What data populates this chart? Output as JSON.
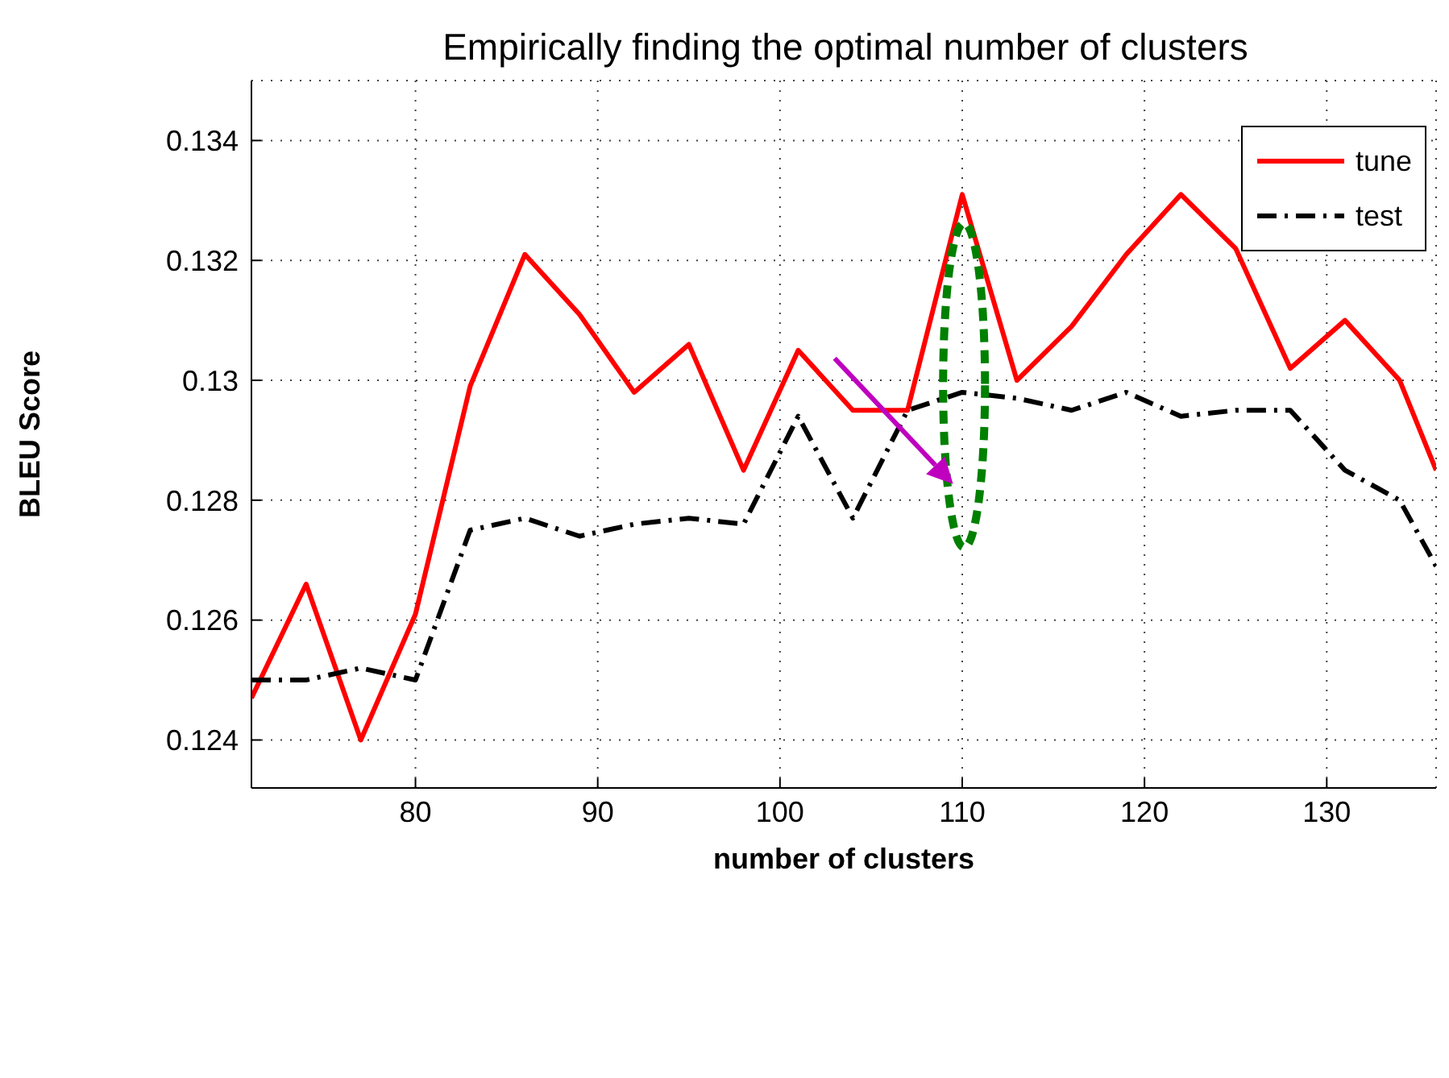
{
  "chart_data": {
    "type": "line",
    "title": "Empirically finding the optimal number of clusters",
    "xlabel": "number of clusters",
    "ylabel": "BLEU Score",
    "x": [
      71,
      74,
      77,
      80,
      83,
      86,
      89,
      92,
      95,
      98,
      101,
      104,
      107,
      110,
      113,
      116,
      119,
      122,
      125,
      128,
      131,
      134,
      136
    ],
    "series": [
      {
        "name": "tune",
        "color": "#ff0000",
        "line_style": "solid",
        "values": [
          0.1247,
          0.1266,
          0.124,
          0.1261,
          0.1299,
          0.1321,
          0.1311,
          0.1298,
          0.1306,
          0.1285,
          0.1305,
          0.1295,
          0.1295,
          0.1331,
          0.13,
          0.1309,
          0.1321,
          0.1331,
          0.1322,
          0.1302,
          0.131,
          0.13,
          0.1285
        ]
      },
      {
        "name": "test",
        "color": "#000000",
        "line_style": "dashdot",
        "values": [
          0.125,
          0.125,
          0.1252,
          0.125,
          0.1275,
          0.1277,
          0.1274,
          0.1276,
          0.1277,
          0.1276,
          0.1294,
          0.1277,
          0.1295,
          0.1298,
          0.1297,
          0.1295,
          0.1298,
          0.1294,
          0.1295,
          0.1295,
          0.1285,
          0.128,
          0.1269
        ]
      }
    ],
    "xlim": [
      71,
      136
    ],
    "xticks": [
      80,
      90,
      100,
      110,
      120,
      130
    ],
    "ylim": [
      0.1232,
      0.135
    ],
    "yticks": [
      0.124,
      0.126,
      0.128,
      0.13,
      0.132,
      0.134
    ],
    "grid": true,
    "legend": "top right",
    "marker": "none"
  }
}
